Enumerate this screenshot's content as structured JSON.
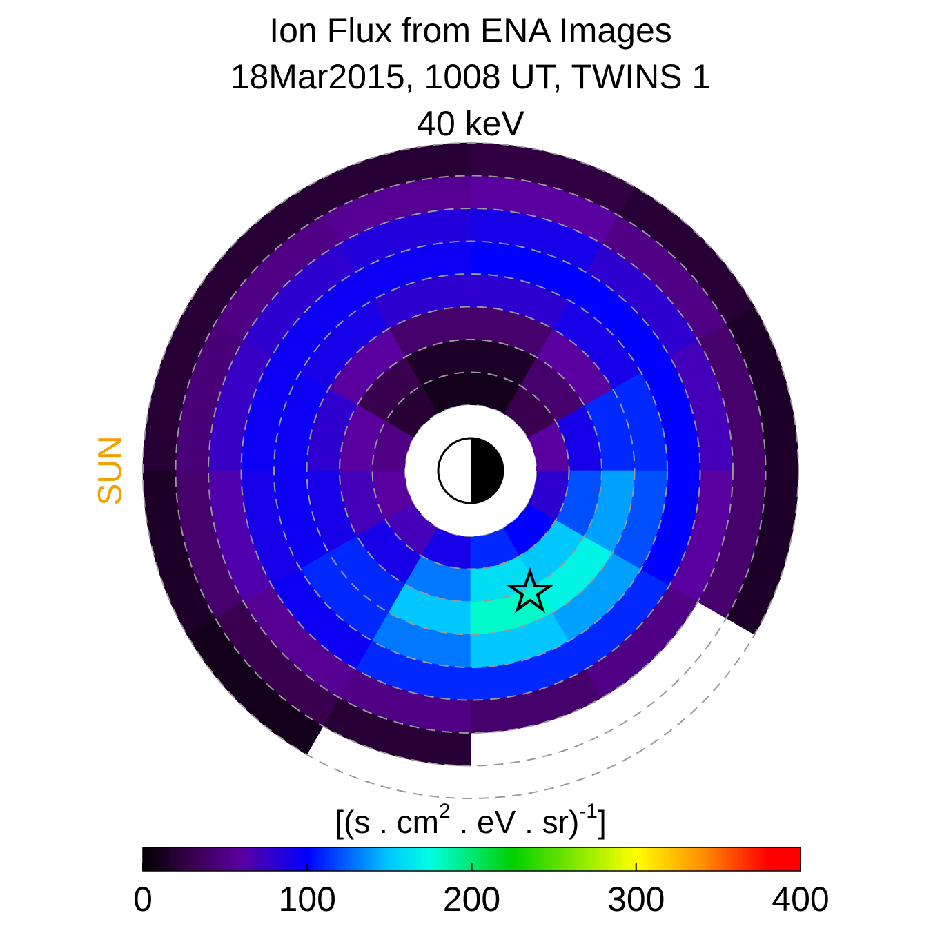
{
  "chart_data": {
    "type": "polar-heatmap",
    "title": [
      "Ion Flux from  ENA Images",
      "18Mar2015, 1008 UT,  TWINS 1",
      "40 keV"
    ],
    "side_label": "SUN",
    "colorbar_label": [
      "[(s . cm",
      "2",
      " . eV . sr)",
      "-1",
      "]"
    ],
    "r_edges": [
      2,
      3,
      4,
      5,
      6,
      7,
      8,
      9,
      10
    ],
    "angle_edges": [
      0,
      30,
      60,
      90,
      120,
      150,
      180,
      210,
      240,
      270,
      300,
      330,
      360
    ],
    "values": [
      [
        60,
        30,
        10,
        10,
        20,
        50,
        60,
        70,
        90,
        110,
        100,
        80
      ],
      [
        90,
        40,
        15,
        15,
        30,
        60,
        70,
        90,
        130,
        160,
        150,
        120
      ],
      [
        110,
        60,
        40,
        40,
        60,
        80,
        90,
        110,
        150,
        180,
        170,
        140
      ],
      [
        110,
        90,
        80,
        80,
        90,
        95,
        95,
        110,
        130,
        150,
        140,
        120
      ],
      [
        100,
        100,
        100,
        95,
        95,
        95,
        90,
        95,
        110,
        110,
        110,
        100
      ],
      [
        70,
        80,
        90,
        85,
        80,
        75,
        65,
        55,
        50,
        40,
        50,
        60
      ],
      [
        40,
        50,
        60,
        55,
        50,
        45,
        40,
        30,
        20,
        null,
        null,
        40
      ],
      [
        15,
        20,
        25,
        20,
        20,
        20,
        15,
        10,
        null,
        null,
        null,
        15
      ]
    ],
    "clim": [
      0,
      400
    ],
    "cticks": [
      0,
      100,
      200,
      300,
      400
    ],
    "colorscale": [
      [
        0,
        "#000000"
      ],
      [
        30,
        "#3a0050"
      ],
      [
        60,
        "#5a00a0"
      ],
      [
        100,
        "#0000ff"
      ],
      [
        150,
        "#00c8ff"
      ],
      [
        175,
        "#00ffe0"
      ],
      [
        225,
        "#00d000"
      ],
      [
        300,
        "#ffff00"
      ],
      [
        340,
        "#ff9000"
      ],
      [
        380,
        "#ff0000"
      ],
      [
        400,
        "#ff0000"
      ]
    ]
  }
}
